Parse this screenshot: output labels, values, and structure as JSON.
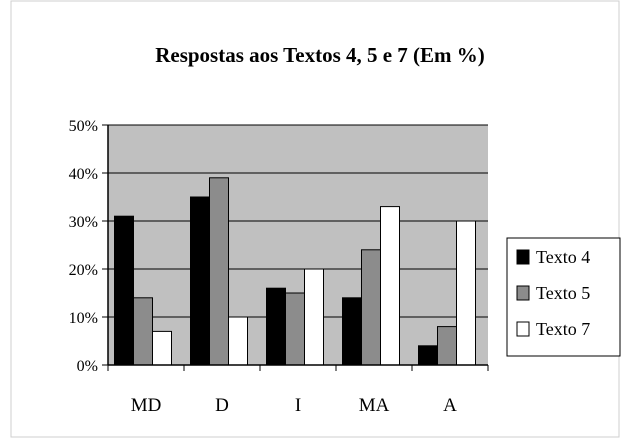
{
  "chart_data": {
    "type": "bar",
    "title": "Respostas aos Textos 4, 5 e 7 (Em %)",
    "xlabel": "",
    "ylabel": "",
    "categories": [
      "MD",
      "D",
      "I",
      "MA",
      "A"
    ],
    "series": [
      {
        "name": "Texto 4",
        "values": [
          31,
          35,
          16,
          14,
          4
        ],
        "color": "#000000"
      },
      {
        "name": "Texto 5",
        "values": [
          14,
          39,
          15,
          24,
          8
        ],
        "color": "#8c8c8c"
      },
      {
        "name": "Texto 7",
        "values": [
          7,
          10,
          20,
          33,
          30
        ],
        "color": "#ffffff"
      }
    ],
    "ylim": [
      0,
      50
    ],
    "yticks": [
      0,
      10,
      20,
      30,
      40,
      50
    ],
    "ytick_labels": [
      "0%",
      "10%",
      "20%",
      "30%",
      "40%",
      "50%"
    ],
    "grid": true,
    "plot_background": "#c0c0c0",
    "legend_position": "right"
  }
}
